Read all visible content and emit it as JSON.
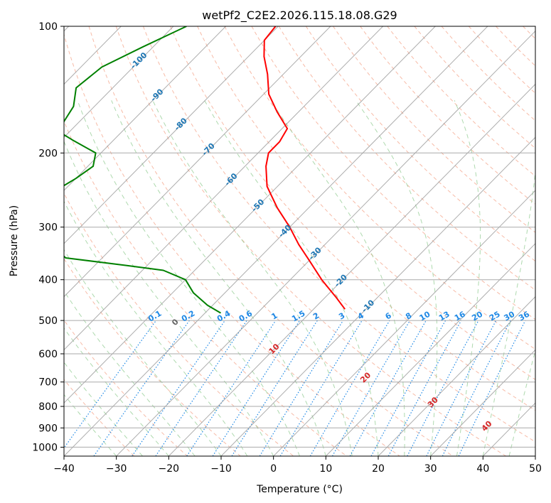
{
  "chart_data": {
    "type": "skew-t",
    "title": "wetPf2_C2E2.2026.115.18.08.G29",
    "xlabel": "Temperature (°C)",
    "ylabel": "Pressure (hPa)",
    "xlim": [
      -40,
      50
    ],
    "ylim": [
      1050,
      100
    ],
    "x_ticks": [
      -40,
      -30,
      -20,
      -10,
      0,
      10,
      20,
      30,
      40,
      50
    ],
    "y_ticks": [
      100,
      200,
      300,
      400,
      500,
      600,
      700,
      800,
      900,
      1000
    ],
    "grid": true,
    "colors": {
      "temperature": "#ff0000",
      "dewpoint": "#008000",
      "isotherm": "#999999",
      "dry_adiabat": "#f4a48a",
      "moist_adiabat": "#8cc98c",
      "mixing_ratio": "#1e88e5",
      "temp_label": "#1f77b4",
      "moist_label": "#d62728"
    },
    "isotherm_labels": [
      {
        "text": "-100",
        "value": -100
      },
      {
        "text": "-90",
        "value": -90
      },
      {
        "text": "-80",
        "value": -80
      },
      {
        "text": "-70",
        "value": -70
      },
      {
        "text": "-60",
        "value": -60
      },
      {
        "text": "-50",
        "value": -50
      },
      {
        "text": "-40",
        "value": -40
      },
      {
        "text": "-30",
        "value": -30
      },
      {
        "text": "-20",
        "value": -20
      },
      {
        "text": "-10",
        "value": -10
      }
    ],
    "mixing_ratio_labels": [
      "0.1",
      "0.2",
      "0.4",
      "0.6",
      "1",
      "1.5",
      "2",
      "3",
      "4",
      "6",
      "8",
      "10",
      "13",
      "16",
      "20",
      "25",
      "30",
      "36"
    ],
    "moist_adiabat_labels": [
      {
        "text": "0",
        "value": 0
      },
      {
        "text": "10",
        "value": 10
      },
      {
        "text": "20",
        "value": 20
      },
      {
        "text": "30",
        "value": 30
      },
      {
        "text": "40",
        "value": 40
      }
    ],
    "series": [
      {
        "name": "Temperature",
        "points": [
          {
            "p": 100,
            "t": -80.5
          },
          {
            "p": 108,
            "t": -80
          },
          {
            "p": 118,
            "t": -77
          },
          {
            "p": 130,
            "t": -73
          },
          {
            "p": 145,
            "t": -69
          },
          {
            "p": 160,
            "t": -64
          },
          {
            "p": 175,
            "t": -59
          },
          {
            "p": 188,
            "t": -58
          },
          {
            "p": 200,
            "t": -58
          },
          {
            "p": 215,
            "t": -56
          },
          {
            "p": 240,
            "t": -52
          },
          {
            "p": 270,
            "t": -46
          },
          {
            "p": 300,
            "t": -40
          },
          {
            "p": 330,
            "t": -35
          },
          {
            "p": 360,
            "t": -30
          },
          {
            "p": 400,
            "t": -24
          },
          {
            "p": 440,
            "t": -18
          },
          {
            "p": 470,
            "t": -14
          }
        ]
      },
      {
        "name": "Dewpoint",
        "points": [
          {
            "p": 100,
            "t": -97.5
          },
          {
            "p": 112,
            "t": -102
          },
          {
            "p": 125,
            "t": -106
          },
          {
            "p": 140,
            "t": -107
          },
          {
            "p": 155,
            "t": -104
          },
          {
            "p": 168,
            "t": -103
          },
          {
            "p": 178,
            "t": -102
          },
          {
            "p": 186,
            "t": -98
          },
          {
            "p": 200,
            "t": -91
          },
          {
            "p": 215,
            "t": -89
          },
          {
            "p": 230,
            "t": -90
          },
          {
            "p": 250,
            "t": -92
          },
          {
            "p": 270,
            "t": -91
          },
          {
            "p": 290,
            "t": -90
          },
          {
            "p": 305,
            "t": -86
          },
          {
            "p": 320,
            "t": -84
          },
          {
            "p": 340,
            "t": -80
          },
          {
            "p": 355,
            "t": -77
          },
          {
            "p": 370,
            "t": -64
          },
          {
            "p": 380,
            "t": -56
          },
          {
            "p": 400,
            "t": -50
          },
          {
            "p": 430,
            "t": -46
          },
          {
            "p": 460,
            "t": -41
          },
          {
            "p": 480,
            "t": -37
          }
        ]
      }
    ]
  }
}
